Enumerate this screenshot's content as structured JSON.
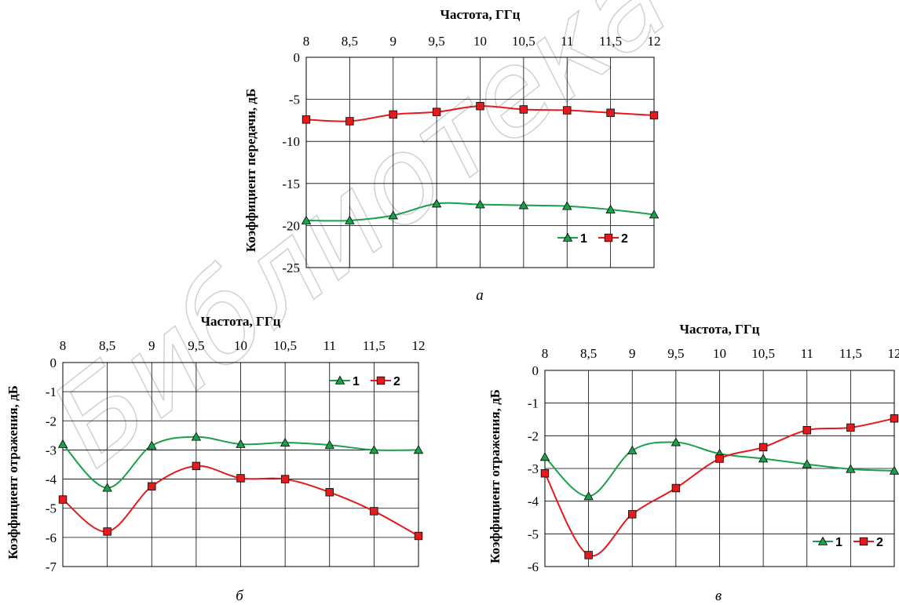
{
  "watermark": "Библиотека",
  "chart_data": [
    {
      "type": "line",
      "caption": "а",
      "xlabel": "Частота, ГГц",
      "ylabel": "Коэффициент передачи, дБ",
      "x": [
        8,
        8.5,
        9,
        9.5,
        10,
        10.5,
        11,
        11.5,
        12
      ],
      "x_tick_labels": [
        "8",
        "8,5",
        "9",
        "9,5",
        "10",
        "10,5",
        "11",
        "11,5",
        "12"
      ],
      "y_ticks": [
        0,
        -5,
        -10,
        -15,
        -20,
        -25
      ],
      "y_tick_labels": [
        "0",
        "-5",
        "-10",
        "-15",
        "-20",
        "-25"
      ],
      "xlim": [
        8,
        12
      ],
      "ylim": [
        -25,
        0
      ],
      "x_axis_position": "top",
      "grid": true,
      "legend_position": "bottom-right",
      "series": [
        {
          "name": "1",
          "marker": "triangle",
          "line_color": "#1aa04a",
          "marker_color": "#1aa04a",
          "values": [
            -19.4,
            -19.4,
            -18.8,
            -17.4,
            -17.5,
            -17.6,
            -17.7,
            -18.1,
            -18.7
          ]
        },
        {
          "name": "2",
          "marker": "square",
          "line_color": "#e41a1c",
          "marker_color": "#e41a1c",
          "values": [
            -7.4,
            -7.6,
            -6.8,
            -6.5,
            -5.8,
            -6.2,
            -6.3,
            -6.6,
            -6.9
          ]
        }
      ]
    },
    {
      "type": "line",
      "caption": "б",
      "xlabel": "Частота, ГГц",
      "ylabel": "Коэффициент отражения, дБ",
      "x": [
        8,
        8.5,
        9,
        9.5,
        10,
        10.5,
        11,
        11.5,
        12
      ],
      "x_tick_labels": [
        "8",
        "8,5",
        "9",
        "9,5",
        "10",
        "10,5",
        "11",
        "11,5",
        "12"
      ],
      "y_ticks": [
        0,
        -1,
        -2,
        -3,
        -4,
        -5,
        -6,
        -7
      ],
      "y_tick_labels": [
        "0",
        "-1",
        "-2",
        "-3",
        "-4",
        "-5",
        "-6",
        "-7"
      ],
      "xlim": [
        8,
        12
      ],
      "ylim": [
        -7,
        0
      ],
      "x_axis_position": "top",
      "grid": true,
      "legend_position": "top-right",
      "series": [
        {
          "name": "1",
          "marker": "triangle",
          "line_color": "#1aa04a",
          "marker_color": "#1aa04a",
          "values": [
            -2.8,
            -4.3,
            -2.85,
            -2.55,
            -2.8,
            -2.75,
            -2.83,
            -3.0,
            -3.0
          ]
        },
        {
          "name": "2",
          "marker": "square",
          "line_color": "#e41a1c",
          "marker_color": "#e41a1c",
          "values": [
            -4.7,
            -5.8,
            -4.25,
            -3.55,
            -3.97,
            -4.0,
            -4.45,
            -5.1,
            -5.95
          ]
        }
      ]
    },
    {
      "type": "line",
      "caption": "в",
      "xlabel": "Частота, ГГц",
      "ylabel": "Коэффициент отражения, дБ",
      "x": [
        8,
        8.5,
        9,
        9.5,
        10,
        10.5,
        11,
        11.5,
        12
      ],
      "x_tick_labels": [
        "8",
        "8,5",
        "9",
        "9,5",
        "10",
        "10,5",
        "11",
        "11,5",
        "12"
      ],
      "y_ticks": [
        0,
        -1,
        -2,
        -3,
        -4,
        -5,
        -6
      ],
      "y_tick_labels": [
        "0",
        "-1",
        "-2",
        "-3",
        "-4",
        "-5",
        "-6"
      ],
      "xlim": [
        8,
        12
      ],
      "ylim": [
        -6,
        0
      ],
      "x_axis_position": "top",
      "grid": true,
      "legend_position": "bottom-right",
      "series": [
        {
          "name": "1",
          "marker": "triangle",
          "line_color": "#1aa04a",
          "marker_color": "#1aa04a",
          "values": [
            -2.65,
            -3.85,
            -2.45,
            -2.2,
            -2.55,
            -2.7,
            -2.87,
            -3.02,
            -3.07
          ]
        },
        {
          "name": "2",
          "marker": "square",
          "line_color": "#e41a1c",
          "marker_color": "#e41a1c",
          "values": [
            -3.15,
            -5.65,
            -4.4,
            -3.6,
            -2.7,
            -2.35,
            -1.83,
            -1.75,
            -1.47
          ]
        }
      ]
    }
  ]
}
